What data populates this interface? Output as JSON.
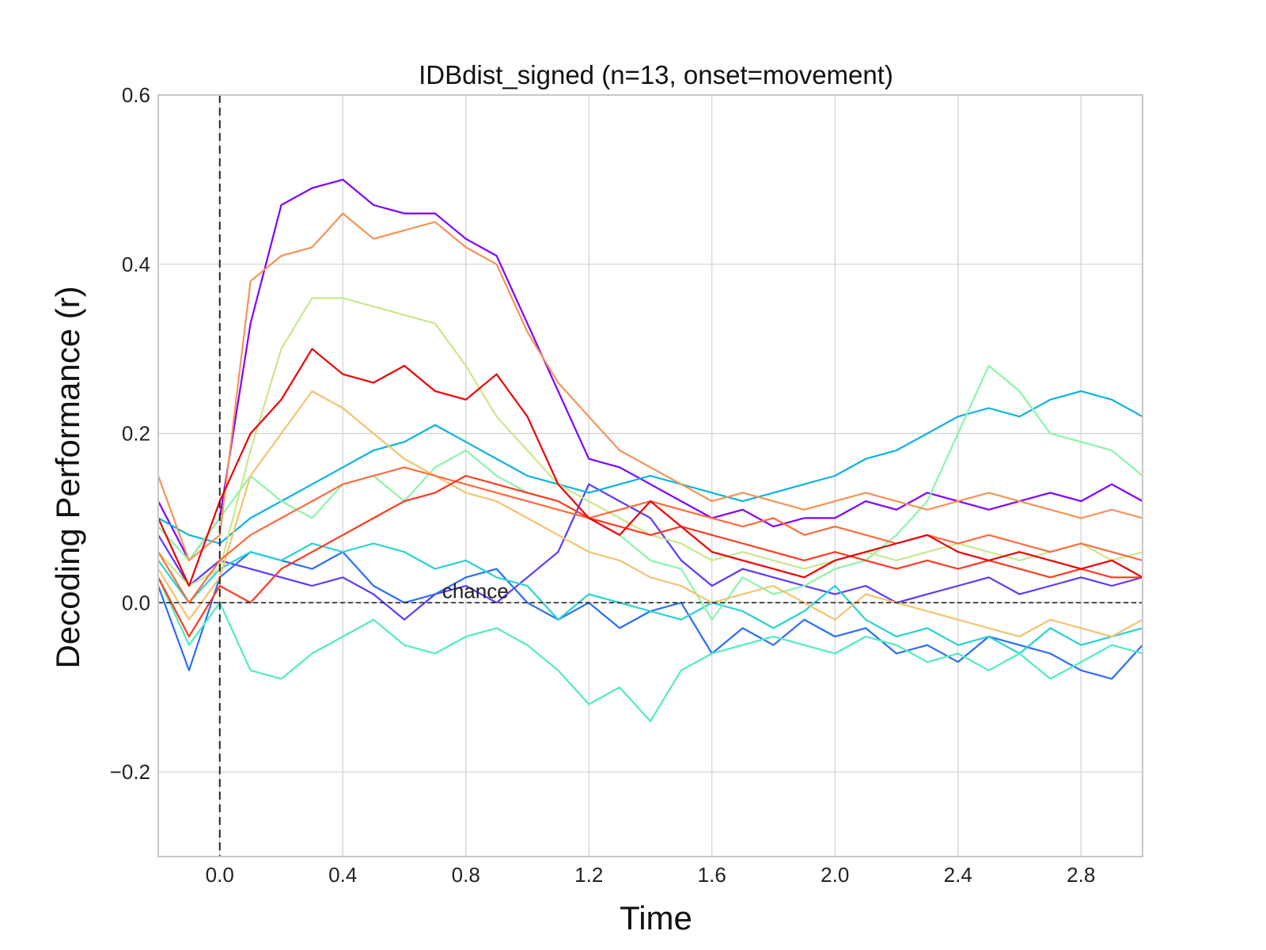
{
  "chart_data": {
    "type": "line",
    "title": "IDBdist_signed (n=13, onset=movement)",
    "xlabel": "Time",
    "ylabel": "Decoding Performance (r)",
    "xlim": [
      -0.2,
      3.0
    ],
    "ylim": [
      -0.3,
      0.6
    ],
    "x_ticks": [
      0.0,
      0.4,
      0.8,
      1.2,
      1.6,
      2.0,
      2.4,
      2.8
    ],
    "y_ticks": [
      -0.2,
      0.0,
      0.2,
      0.4,
      0.6
    ],
    "x_tick_labels": [
      "0.0",
      "0.4",
      "0.8",
      "1.2",
      "1.6",
      "2.0",
      "2.4",
      "2.8"
    ],
    "y_tick_labels": [
      "−0.2",
      "0.0",
      "0.2",
      "0.4",
      "0.6"
    ],
    "grid": true,
    "onset_line_x": 0.0,
    "chance_level": 0.0,
    "chance_label": "chance",
    "colormap": "rainbow",
    "x": [
      -0.2,
      -0.1,
      0.0,
      0.1,
      0.2,
      0.3,
      0.4,
      0.5,
      0.6,
      0.7,
      0.8,
      0.9,
      1.0,
      1.1,
      1.2,
      1.3,
      1.4,
      1.5,
      1.6,
      1.7,
      1.8,
      1.9,
      2.0,
      2.1,
      2.2,
      2.3,
      2.4,
      2.5,
      2.6,
      2.7,
      2.8,
      2.9,
      3.0
    ],
    "series": [
      {
        "color": "#8000ff",
        "values": [
          0.12,
          0.05,
          0.1,
          0.33,
          0.47,
          0.49,
          0.5,
          0.47,
          0.46,
          0.46,
          0.43,
          0.41,
          0.33,
          0.25,
          0.17,
          0.16,
          0.14,
          0.12,
          0.1,
          0.11,
          0.09,
          0.1,
          0.1,
          0.12,
          0.11,
          0.13,
          0.12,
          0.11,
          0.12,
          0.13,
          0.12,
          0.14,
          0.12
        ]
      },
      {
        "color": "#5a3aff",
        "values": [
          0.08,
          0.02,
          0.05,
          0.04,
          0.03,
          0.02,
          0.03,
          0.01,
          -0.02,
          0.01,
          0.02,
          0.0,
          0.03,
          0.06,
          0.14,
          0.12,
          0.1,
          0.05,
          0.02,
          0.04,
          0.03,
          0.02,
          0.01,
          0.02,
          0.0,
          0.01,
          0.02,
          0.03,
          0.01,
          0.02,
          0.03,
          0.02,
          0.03
        ]
      },
      {
        "color": "#2a6ef5",
        "values": [
          0.02,
          -0.08,
          0.03,
          0.06,
          0.05,
          0.04,
          0.06,
          0.02,
          0.0,
          0.01,
          0.03,
          0.04,
          0.0,
          -0.02,
          0.0,
          -0.03,
          -0.01,
          0.0,
          -0.06,
          -0.03,
          -0.05,
          -0.02,
          -0.04,
          -0.03,
          -0.06,
          -0.05,
          -0.07,
          -0.04,
          -0.05,
          -0.06,
          -0.08,
          -0.09,
          -0.05
        ]
      },
      {
        "color": "#0ab4e0",
        "values": [
          0.1,
          0.08,
          0.07,
          0.1,
          0.12,
          0.14,
          0.16,
          0.18,
          0.19,
          0.21,
          0.19,
          0.17,
          0.15,
          0.14,
          0.13,
          0.14,
          0.15,
          0.14,
          0.13,
          0.12,
          0.13,
          0.14,
          0.15,
          0.17,
          0.18,
          0.2,
          0.22,
          0.23,
          0.22,
          0.24,
          0.25,
          0.24,
          0.22
        ]
      },
      {
        "color": "#28d2d2",
        "values": [
          0.05,
          0.0,
          0.04,
          0.06,
          0.05,
          0.07,
          0.06,
          0.07,
          0.06,
          0.04,
          0.05,
          0.03,
          0.02,
          -0.02,
          0.01,
          0.0,
          -0.01,
          -0.02,
          0.0,
          -0.01,
          -0.03,
          -0.01,
          0.02,
          -0.02,
          -0.04,
          -0.03,
          -0.05,
          -0.04,
          -0.06,
          -0.03,
          -0.05,
          -0.04,
          -0.03
        ]
      },
      {
        "color": "#50ebc4",
        "values": [
          0.03,
          -0.05,
          0.0,
          -0.08,
          -0.09,
          -0.06,
          -0.04,
          -0.02,
          -0.05,
          -0.06,
          -0.04,
          -0.03,
          -0.05,
          -0.08,
          -0.12,
          -0.1,
          -0.14,
          -0.08,
          -0.06,
          -0.05,
          -0.04,
          -0.05,
          -0.06,
          -0.04,
          -0.05,
          -0.07,
          -0.06,
          -0.08,
          -0.06,
          -0.09,
          -0.07,
          -0.05,
          -0.06
        ]
      },
      {
        "color": "#8af5a8",
        "values": [
          0.09,
          0.05,
          0.1,
          0.15,
          0.12,
          0.1,
          0.14,
          0.15,
          0.12,
          0.16,
          0.18,
          0.15,
          0.13,
          0.12,
          0.1,
          0.08,
          0.05,
          0.04,
          -0.02,
          0.03,
          0.01,
          0.02,
          0.04,
          0.05,
          0.08,
          0.12,
          0.2,
          0.28,
          0.25,
          0.2,
          0.19,
          0.18,
          0.15
        ]
      },
      {
        "color": "#c8e88a",
        "values": [
          0.06,
          0.02,
          0.04,
          0.18,
          0.3,
          0.36,
          0.36,
          0.35,
          0.34,
          0.33,
          0.28,
          0.22,
          0.18,
          0.14,
          0.12,
          0.1,
          0.08,
          0.07,
          0.05,
          0.06,
          0.05,
          0.04,
          0.05,
          0.06,
          0.05,
          0.06,
          0.07,
          0.06,
          0.05,
          0.06,
          0.07,
          0.05,
          0.06
        ]
      },
      {
        "color": "#f5c270",
        "values": [
          0.04,
          -0.02,
          0.03,
          0.15,
          0.2,
          0.25,
          0.23,
          0.2,
          0.17,
          0.15,
          0.13,
          0.12,
          0.1,
          0.08,
          0.06,
          0.05,
          0.03,
          0.02,
          0.0,
          0.01,
          0.02,
          0.0,
          -0.02,
          0.01,
          0.0,
          -0.01,
          -0.02,
          -0.03,
          -0.04,
          -0.02,
          -0.03,
          -0.04,
          -0.02
        ]
      },
      {
        "color": "#f59356",
        "values": [
          0.15,
          0.05,
          0.08,
          0.38,
          0.41,
          0.42,
          0.46,
          0.43,
          0.44,
          0.45,
          0.42,
          0.4,
          0.32,
          0.26,
          0.22,
          0.18,
          0.16,
          0.14,
          0.12,
          0.13,
          0.12,
          0.11,
          0.12,
          0.13,
          0.12,
          0.11,
          0.12,
          0.13,
          0.12,
          0.11,
          0.1,
          0.11,
          0.1
        ]
      },
      {
        "color": "#ff6a3c",
        "values": [
          0.06,
          0.0,
          0.05,
          0.08,
          0.1,
          0.12,
          0.14,
          0.15,
          0.16,
          0.15,
          0.14,
          0.13,
          0.12,
          0.11,
          0.1,
          0.11,
          0.12,
          0.11,
          0.1,
          0.09,
          0.1,
          0.08,
          0.09,
          0.08,
          0.07,
          0.08,
          0.07,
          0.08,
          0.07,
          0.06,
          0.07,
          0.06,
          0.05
        ]
      },
      {
        "color": "#ff3a20",
        "values": [
          0.03,
          -0.04,
          0.02,
          0.0,
          0.04,
          0.06,
          0.08,
          0.1,
          0.12,
          0.13,
          0.15,
          0.14,
          0.13,
          0.12,
          0.1,
          0.09,
          0.08,
          0.09,
          0.08,
          0.07,
          0.06,
          0.05,
          0.06,
          0.05,
          0.04,
          0.05,
          0.04,
          0.05,
          0.04,
          0.03,
          0.04,
          0.03,
          0.03
        ]
      },
      {
        "color": "#ee0000",
        "values": [
          0.1,
          0.02,
          0.12,
          0.2,
          0.24,
          0.3,
          0.27,
          0.26,
          0.28,
          0.25,
          0.24,
          0.27,
          0.22,
          0.14,
          0.1,
          0.08,
          0.12,
          0.09,
          0.06,
          0.05,
          0.04,
          0.03,
          0.05,
          0.06,
          0.07,
          0.08,
          0.06,
          0.05,
          0.06,
          0.05,
          0.04,
          0.05,
          0.03
        ]
      }
    ]
  }
}
